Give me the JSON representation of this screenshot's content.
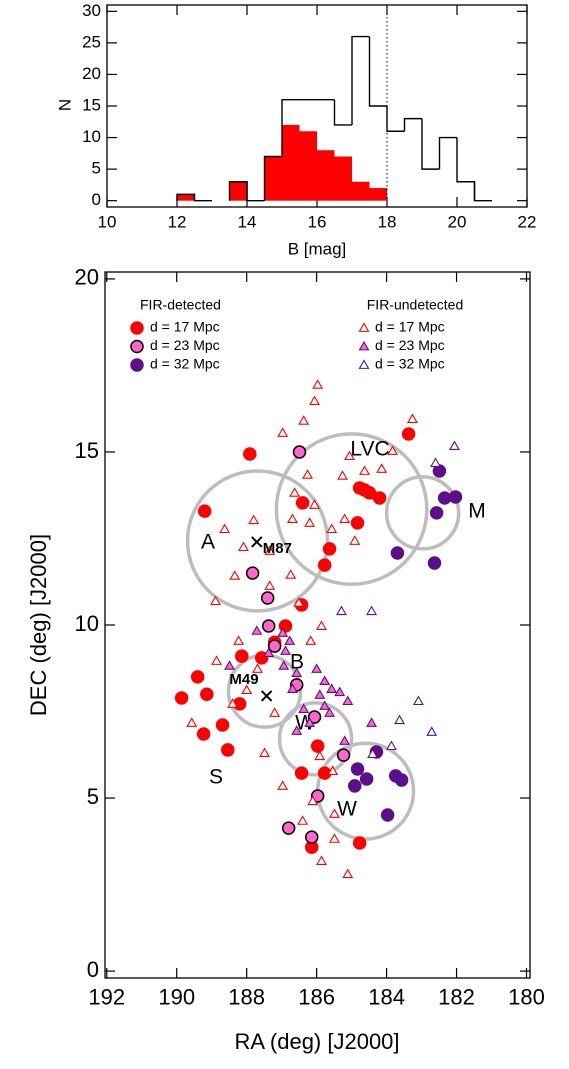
{
  "chart_data": [
    {
      "type": "histogram",
      "ylabel": "N",
      "xlabel": "B [mag]",
      "bins": [
        10,
        10.5,
        11,
        11.5,
        12,
        12.5,
        13,
        13.5,
        14,
        14.5,
        15,
        15.5,
        16,
        16.5,
        17,
        17.5,
        18,
        18.5,
        19,
        19.5,
        20,
        20.5,
        21,
        21.5,
        22
      ],
      "series": [
        {
          "color": "#ff0000",
          "filled": true,
          "values": [
            0,
            0,
            0,
            0,
            1,
            0,
            0,
            3,
            0,
            7,
            12,
            11,
            8,
            7,
            3,
            2,
            0,
            0,
            0,
            0,
            0,
            0,
            0,
            0
          ]
        },
        {
          "color": "#000000",
          "filled": false,
          "values": [
            0,
            0,
            0,
            0,
            1,
            0,
            0,
            3,
            0,
            7,
            16,
            16,
            16,
            12,
            26,
            15,
            11,
            13,
            5,
            10,
            3,
            0,
            0,
            0
          ]
        }
      ],
      "xlim": [
        10,
        22
      ],
      "ylim": [
        -1,
        31
      ],
      "xticks": [
        10,
        12,
        14,
        16,
        18,
        20,
        22
      ],
      "yticks": [
        0,
        5,
        10,
        15,
        20,
        25,
        30
      ],
      "vline": 18
    },
    {
      "type": "scatter",
      "xlabel": "RA (deg) [J2000]",
      "ylabel": "DEC (deg) [J2000]",
      "xlim": [
        192.05,
        179.9
      ],
      "ylim": [
        -0.2,
        20.2
      ],
      "xticks": [
        192,
        190,
        188,
        186,
        184,
        182,
        180
      ],
      "yticks": [
        0,
        5,
        10,
        15,
        20
      ],
      "legend_titles": [
        "FIR-detected",
        "FIR-undetected"
      ],
      "series": [
        {
          "name": "d = 17 Mpc",
          "group": 0,
          "marker": "circle",
          "color": "#ff0000",
          "edge": "#ff0000",
          "x": [
            187.91,
            189.2,
            186.4,
            185.63,
            185.77,
            186.43,
            186.89,
            188.14,
            187.57,
            187.2,
            189.4,
            189.86,
            189.14,
            188.69,
            189.23,
            188.54,
            188.2,
            185.97,
            186.43,
            185.77,
            186.14,
            184.77,
            184.77,
            184.63,
            184.49,
            184.2,
            184.83,
            183.37
          ],
          "values": [
            14.94,
            13.29,
            13.53,
            12.2,
            11.73,
            10.58,
            9.97,
            9.1,
            9.05,
            9.5,
            8.5,
            7.89,
            8.0,
            7.11,
            6.85,
            6.39,
            7.72,
            6.5,
            5.72,
            5.72,
            3.58,
            3.7,
            13.96,
            13.9,
            13.82,
            13.67,
            12.95,
            15.52
          ]
        },
        {
          "name": "d = 23 Mpc",
          "group": 0,
          "marker": "circle",
          "color": "#ff66cc",
          "edge": "#000000",
          "x": [
            186.49,
            187.83,
            187.4,
            187.37,
            187.2,
            186.57,
            186.06,
            185.23,
            185.97,
            186.8,
            186.14
          ],
          "values": [
            15.0,
            11.5,
            10.78,
            9.97,
            9.39,
            8.27,
            7.34,
            6.24,
            5.06,
            4.13,
            3.87
          ]
        },
        {
          "name": "d = 32 Mpc",
          "group": 0,
          "marker": "circle",
          "color": "#5c0f8b",
          "edge": "#5c0f8b",
          "x": [
            182.49,
            182.34,
            182.03,
            182.57,
            183.69,
            182.63,
            184.83,
            184.29,
            184.57,
            184.91,
            183.74,
            183.57,
            183.97
          ],
          "values": [
            14.45,
            13.67,
            13.7,
            13.24,
            12.08,
            11.79,
            5.84,
            6.33,
            5.55,
            5.35,
            5.64,
            5.52,
            4.51
          ]
        },
        {
          "name": "d = 17 Mpc",
          "group": 1,
          "marker": "triangle",
          "color": "#ffffff",
          "edge": "#ff0000",
          "x": [
            185.97,
            186.06,
            186.37,
            186.97,
            185.06,
            185.26,
            184.14,
            183.26,
            183.83,
            186.26,
            186.63,
            186.06,
            186.69,
            187.8,
            188.63,
            188.09,
            187.34,
            186.2,
            185.2,
            184.91,
            185.57,
            186.74,
            188.34,
            187.34,
            188.89,
            185.86,
            186.17,
            188.23,
            188.86,
            187.69,
            188.0,
            188.4,
            187.2,
            189.57,
            187.49,
            185.91,
            185.54,
            186.97,
            186.11,
            186.4,
            185.49,
            185.49,
            185.11,
            185.86,
            186.51,
            184.63
          ],
          "values": [
            16.94,
            16.47,
            15.9,
            15.55,
            14.88,
            14.31,
            14.51,
            15.95,
            15.03,
            14.34,
            13.82,
            13.47,
            13.06,
            13.03,
            12.77,
            12.25,
            12.14,
            12.95,
            13.06,
            12.43,
            12.77,
            11.45,
            11.42,
            11.13,
            10.69,
            9.97,
            9.54,
            9.54,
            8.96,
            8.73,
            8.12,
            7.72,
            7.46,
            7.17,
            6.3,
            6.21,
            5.78,
            5.35,
            4.91,
            4.34,
            4.54,
            3.82,
            2.8,
            3.18,
            10.64,
            14.45
          ]
        },
        {
          "name": "d = 23 Mpc",
          "group": 1,
          "marker": "triangle",
          "color": "#ff66cc",
          "edge": "#5c0f8b",
          "x": [
            187.71,
            186.97,
            186.77,
            186.89,
            187.37,
            186.94,
            186.57,
            186.69,
            186.0,
            185.77,
            185.57,
            185.91,
            185.77,
            185.63,
            185.11,
            185.34,
            186.37,
            186.2,
            186.57,
            184.43,
            185.2,
            188.49
          ],
          "values": [
            9.83,
            9.77,
            9.54,
            9.25,
            9.19,
            8.82,
            8.61,
            8.15,
            8.73,
            8.38,
            8.15,
            7.98,
            7.66,
            7.46,
            7.8,
            8.06,
            7.57,
            7.17,
            6.94,
            7.17,
            6.65,
            8.82
          ]
        },
        {
          "name": "d = 32 Mpc",
          "group": 1,
          "marker": "triangle",
          "color": "#ffffff",
          "edge": "#5c0f8b",
          "x": [
            185.29,
            184.43,
            182.6,
            182.06,
            183.09,
            183.63,
            182.71,
            184.4,
            183.86
          ],
          "values": [
            10.4,
            10.4,
            14.68,
            15.17,
            7.8,
            7.25,
            6.91,
            6.27,
            6.5
          ]
        }
      ],
      "regions": [
        {
          "x": 187.69,
          "y": 12.43,
          "r": 2.0
        },
        {
          "x": 185.0,
          "y": 13.35,
          "r": 2.15
        },
        {
          "x": 182.97,
          "y": 13.24,
          "r": 1.03
        },
        {
          "x": 187.49,
          "y": 8.09,
          "r": 1.03
        },
        {
          "x": 186.03,
          "y": 6.71,
          "r": 1.03
        },
        {
          "x": 184.6,
          "y": 5.2,
          "r": 1.37
        }
      ],
      "region_labels": [
        "A",
        "LVC",
        "M",
        "B",
        "W'",
        "W",
        "S"
      ],
      "markers": [
        {
          "label": "M87",
          "x": 187.71,
          "y": 12.4
        },
        {
          "label": "M49",
          "x": 187.43,
          "y": 7.95
        }
      ]
    }
  ]
}
